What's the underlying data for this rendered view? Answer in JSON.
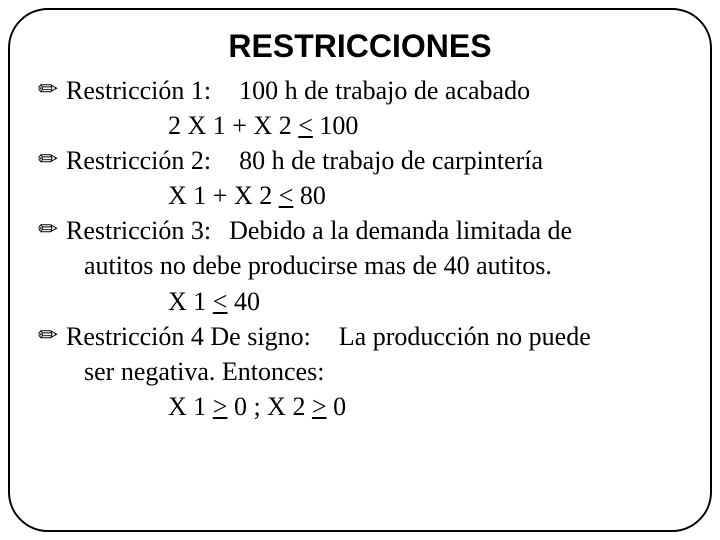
{
  "title": "RESTRICCIONES",
  "r1_label": "Restricción 1:",
  "r1_desc": "100 h de trabajo de acabado",
  "r1_formula_a": "2 X 1 + X 2 ",
  "r1_formula_b": "<",
  "r1_formula_c": " 100",
  "r2_label": "Restricción 2:",
  "r2_desc": "80 h de trabajo de carpintería",
  "r2_formula_a": "X 1 + X 2 ",
  "r2_formula_b": "<",
  "r2_formula_c": " 80",
  "r3_label": "Restricción 3:",
  "r3_desc": "Debido a la demanda limitada  de",
  "r3_cont": "autitos no debe producirse mas de 40 autitos.",
  "r3_formula_a": "X 1  ",
  "r3_formula_b": "<",
  "r3_formula_c": " 40",
  "r4_label": "Restricción 4  De signo:",
  "r4_desc": "La producción no puede",
  "r4_cont": "ser negativa. Entonces:",
  "r4_formula_a": "X 1  ",
  "r4_formula_b": ">",
  "r4_formula_c": " 0   ;     X 2  ",
  "r4_formula_d": ">",
  "r4_formula_e": " 0",
  "bullet_glyph": "✏"
}
